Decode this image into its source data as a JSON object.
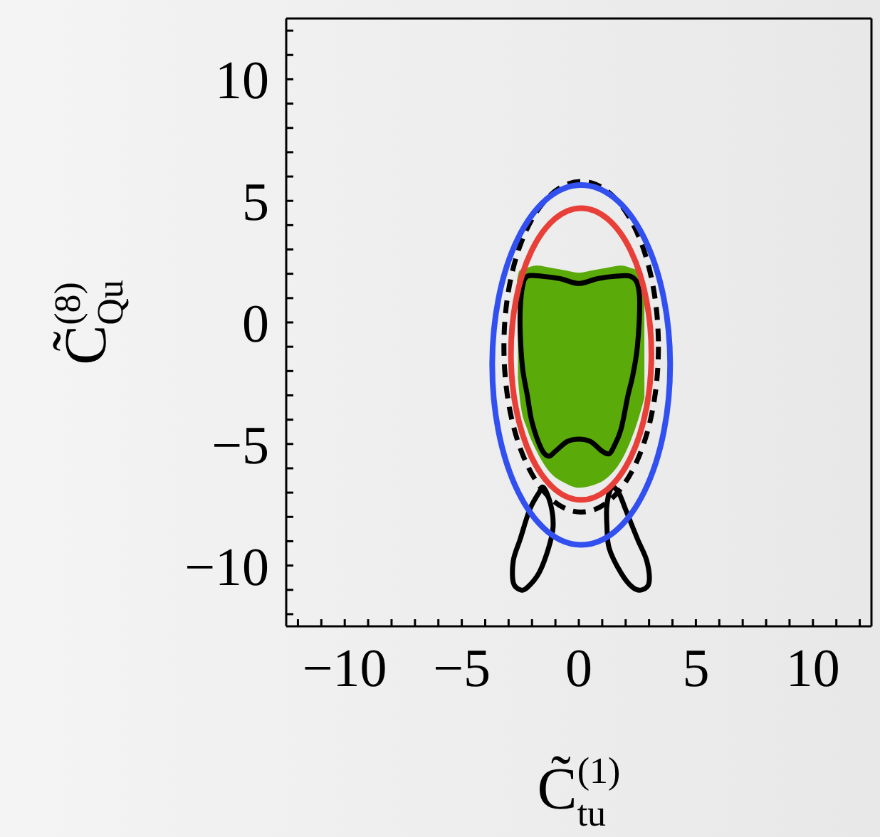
{
  "chart_data": {
    "type": "line",
    "xlabel": "C̃$_{tu}$$^{(1)}$",
    "ylabel": "C̃$_{Qu}$$^{(8)}$",
    "xlim": [
      -12.5,
      12.5
    ],
    "ylim": [
      -12.5,
      12.5
    ],
    "xticks": [
      {
        "value": -12,
        "label": null
      },
      {
        "value": -11,
        "label": null
      },
      -10,
      {
        "value": -9,
        "label": null
      },
      {
        "value": -8,
        "label": null
      },
      {
        "value": -7,
        "label": null
      },
      {
        "value": -6,
        "label": null
      },
      -5,
      {
        "value": -4,
        "label": null
      },
      {
        "value": -3,
        "label": null
      },
      {
        "value": -2,
        "label": null
      },
      {
        "value": -1,
        "label": null
      },
      0,
      {
        "value": 1,
        "label": null
      },
      {
        "value": 2,
        "label": null
      },
      {
        "value": 3,
        "label": null
      },
      {
        "value": 4,
        "label": null
      },
      5,
      {
        "value": 6,
        "label": null
      },
      {
        "value": 7,
        "label": null
      },
      {
        "value": 8,
        "label": null
      },
      {
        "value": 9,
        "label": null
      },
      10,
      {
        "value": 11,
        "label": null
      },
      {
        "value": 12,
        "label": null
      }
    ],
    "yticks": [
      {
        "value": -12,
        "label": null
      },
      {
        "value": -11,
        "label": null
      },
      -10,
      {
        "value": -9,
        "label": null
      },
      {
        "value": -8,
        "label": null
      },
      {
        "value": -7,
        "label": null
      },
      {
        "value": -6,
        "label": null
      },
      -5,
      {
        "value": -4,
        "label": null
      },
      {
        "value": -3,
        "label": null
      },
      {
        "value": -2,
        "label": null
      },
      {
        "value": -1,
        "label": null
      },
      0,
      {
        "value": 1,
        "label": null
      },
      {
        "value": 2,
        "label": null
      },
      {
        "value": 3,
        "label": null
      },
      {
        "value": 4,
        "label": null
      },
      5,
      {
        "value": 6,
        "label": null
      },
      {
        "value": 7,
        "label": null
      },
      {
        "value": 8,
        "label": null
      },
      {
        "value": 9,
        "label": null
      },
      10,
      {
        "value": 11,
        "label": null
      },
      {
        "value": 12,
        "label": null
      }
    ],
    "marker": "none",
    "line_style": "solid",
    "series": [
      {
        "color": "#5aaa0a",
        "x": [
          -2.6,
          -2.5,
          -2.2,
          -1.8,
          -1.2,
          -0.6,
          0,
          0.6,
          1.2,
          1.8,
          2.2,
          2.5,
          2.8
        ],
        "values": [
          1.7,
          2.1,
          2.2,
          2.3,
          2.2,
          2.1,
          2.0,
          2.1,
          2.2,
          2.3,
          2.2,
          2.1,
          1.6
        ],
        "lower": [
          -2.3,
          -3.3,
          -4.4,
          -5.3,
          -6.2,
          -6.6,
          -6.8,
          -6.7,
          -6.4,
          -5.7,
          -4.9,
          -4.1,
          -3.1
        ],
        "upper": [
          1.7,
          2.1,
          2.2,
          2.3,
          2.2,
          2.1,
          2.0,
          2.1,
          2.2,
          2.3,
          2.2,
          2.1,
          1.6
        ]
      }
    ]
  }
}
